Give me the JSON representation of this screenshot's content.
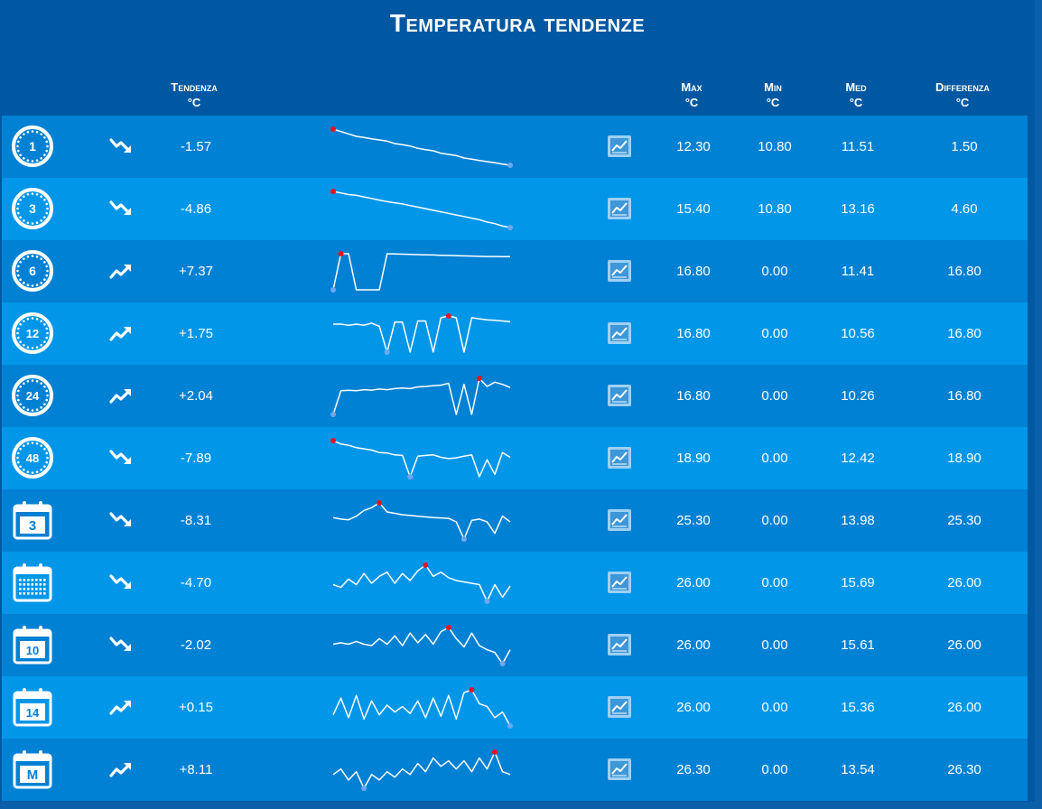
{
  "title": "Temperatura tendenze",
  "headers": {
    "trend": [
      "Tendenza",
      "°C"
    ],
    "max": [
      "Max",
      "°C"
    ],
    "min": [
      "Min",
      "°C"
    ],
    "avg": [
      "Med",
      "°C"
    ],
    "diff": [
      "Differenza",
      "°C"
    ]
  },
  "colors": {
    "background": "#0158a2",
    "row_dark": "#0181d3",
    "row_light": "#0196e8",
    "max_marker": "#e8141c",
    "min_marker": "#6fa7f0"
  },
  "rows": [
    {
      "period_icon": "clock-1-icon",
      "period_label": "1",
      "icon_type": "clock",
      "direction": "down",
      "trend": "-1.57",
      "max": "12.30",
      "min": "10.80",
      "avg": "11.51",
      "diff": "1.50",
      "spark": [
        12.3,
        12.2,
        12.1,
        12.0,
        11.95,
        11.9,
        11.85,
        11.8,
        11.7,
        11.65,
        11.6,
        11.5,
        11.45,
        11.4,
        11.3,
        11.25,
        11.2,
        11.1,
        11.05,
        11.0,
        10.95,
        10.9,
        10.85,
        10.8
      ],
      "spark_max_index": 0,
      "spark_min_index": 23
    },
    {
      "period_icon": "clock-3-icon",
      "period_label": "3",
      "icon_type": "clock",
      "direction": "down",
      "trend": "-4.86",
      "max": "15.40",
      "min": "10.80",
      "avg": "13.16",
      "diff": "4.60",
      "spark": [
        15.4,
        15.2,
        15.0,
        14.9,
        14.7,
        14.5,
        14.3,
        14.1,
        13.95,
        13.8,
        13.6,
        13.4,
        13.2,
        13.0,
        12.8,
        12.6,
        12.4,
        12.2,
        12.0,
        11.8,
        11.5,
        11.3,
        11.0,
        10.8
      ],
      "spark_max_index": 0,
      "spark_min_index": 23
    },
    {
      "period_icon": "clock-6-icon",
      "period_label": "6",
      "icon_type": "clock",
      "direction": "up",
      "trend": "+7.37",
      "max": "16.80",
      "min": "0.00",
      "avg": "11.41",
      "diff": "16.80",
      "spark": [
        0,
        16.8,
        16.8,
        0,
        0,
        0,
        0,
        16.8,
        16.7,
        16.6,
        16.5,
        16.4,
        16.3,
        16.2,
        16.1,
        16.0,
        15.9,
        15.8,
        15.7,
        15.6,
        15.5,
        15.5,
        15.4,
        15.4
      ],
      "spark_max_index": 1,
      "spark_min_index": 0
    },
    {
      "period_icon": "clock-12-icon",
      "period_label": "12",
      "icon_type": "clock",
      "direction": "up",
      "trend": "+1.75",
      "max": "16.80",
      "min": "0.00",
      "avg": "10.56",
      "diff": "16.80",
      "spark": [
        13.0,
        13.0,
        12.5,
        13.0,
        12.5,
        13.5,
        12.0,
        0,
        14.0,
        14.0,
        0,
        14.5,
        14.5,
        0,
        16.0,
        16.8,
        16.0,
        0,
        16.0,
        15.5,
        15.0,
        14.8,
        14.5,
        14.2
      ],
      "spark_max_index": 15,
      "spark_min_index": 7
    },
    {
      "period_icon": "clock-24-icon",
      "period_label": "24",
      "icon_type": "clock",
      "direction": "up",
      "trend": "+2.04",
      "max": "16.80",
      "min": "0.00",
      "avg": "10.26",
      "diff": "16.80",
      "spark": [
        0,
        11.0,
        11.2,
        11.0,
        11.5,
        11.3,
        11.8,
        11.5,
        12.0,
        12.3,
        12.0,
        12.8,
        13.0,
        13.4,
        13.6,
        14.5,
        0,
        14.0,
        0,
        16.8,
        13.0,
        15.0,
        14.0,
        12.5
      ],
      "spark_max_index": 19,
      "spark_min_index": 0
    },
    {
      "period_icon": "clock-48-icon",
      "period_label": "48",
      "icon_type": "clock",
      "direction": "down",
      "trend": "-7.89",
      "max": "18.90",
      "min": "0.00",
      "avg": "12.42",
      "diff": "18.90",
      "spark": [
        18.9,
        17.5,
        17.0,
        16.0,
        15.5,
        15.0,
        14.0,
        13.8,
        13.0,
        12.8,
        4.0,
        12.5,
        12.8,
        13.0,
        12.0,
        11.5,
        11.8,
        12.5,
        13.0,
        4.0,
        11.0,
        5.0,
        14.0,
        12.0
      ],
      "spark_max_index": 0,
      "spark_min_index": 10
    },
    {
      "period_icon": "calendar-3-icon",
      "period_label": "3",
      "icon_type": "calendar",
      "direction": "down",
      "trend": "-8.31",
      "max": "25.30",
      "min": "0.00",
      "avg": "13.98",
      "diff": "25.30",
      "spark": [
        15.0,
        14.0,
        13.5,
        16.0,
        20.0,
        22.0,
        25.3,
        19.0,
        18.0,
        17.0,
        16.5,
        16.0,
        15.5,
        15.0,
        14.8,
        14.5,
        12.0,
        0.0,
        13.0,
        14.0,
        12.0,
        4.0,
        16.0,
        12.0
      ],
      "spark_max_index": 6,
      "spark_min_index": 17
    },
    {
      "period_icon": "calendar-month-grid-icon",
      "period_label": "",
      "icon_type": "calendar-grid",
      "direction": "down",
      "trend": "-4.70",
      "max": "26.00",
      "min": "0.00",
      "avg": "15.69",
      "diff": "26.00",
      "spark": [
        12.0,
        10.0,
        16.0,
        12.0,
        20.0,
        13.0,
        18.0,
        21.0,
        13.0,
        20.0,
        15.0,
        22.0,
        26.0,
        18.0,
        21.0,
        17.0,
        15.0,
        14.0,
        13.0,
        12.0,
        0.0,
        12.0,
        3.0,
        11.0
      ],
      "spark_max_index": 12,
      "spark_min_index": 20
    },
    {
      "period_icon": "calendar-10-icon",
      "period_label": "10",
      "icon_type": "calendar",
      "direction": "down",
      "trend": "-2.02",
      "max": "26.00",
      "min": "0.00",
      "avg": "15.61",
      "diff": "26.00",
      "spark": [
        14.0,
        15.0,
        14.0,
        16.0,
        14.0,
        13.0,
        18.0,
        14.0,
        20.0,
        13.0,
        22.0,
        15.0,
        21.0,
        14.0,
        23.0,
        26.0,
        18.0,
        12.0,
        22.0,
        13.0,
        10.0,
        8.0,
        0.0,
        10.0
      ],
      "spark_max_index": 15,
      "spark_min_index": 22
    },
    {
      "period_icon": "calendar-14-icon",
      "period_label": "14",
      "icon_type": "calendar",
      "direction": "up",
      "trend": "+0.15",
      "max": "26.00",
      "min": "0.00",
      "avg": "15.36",
      "diff": "26.00",
      "spark": [
        8.0,
        20.0,
        6.0,
        22.0,
        5.0,
        18.0,
        8.0,
        15.0,
        10.0,
        14.0,
        9.0,
        18.0,
        6.0,
        20.0,
        7.0,
        22.0,
        5.0,
        24.0,
        26.0,
        16.0,
        14.0,
        6.0,
        10.0,
        0.0
      ],
      "spark_max_index": 18,
      "spark_min_index": 23
    },
    {
      "period_icon": "calendar-m-icon",
      "period_label": "M",
      "icon_type": "calendar",
      "direction": "up",
      "trend": "+8.11",
      "max": "26.30",
      "min": "0.00",
      "avg": "13.54",
      "diff": "26.30",
      "spark": [
        10.0,
        14.0,
        6.0,
        12.0,
        0.0,
        10.0,
        6.0,
        12.0,
        8.0,
        14.0,
        10.0,
        18.0,
        12.0,
        22.0,
        16.0,
        20.0,
        14.0,
        20.0,
        12.0,
        22.0,
        14.0,
        26.3,
        12.0,
        10.0
      ],
      "spark_max_index": 21,
      "spark_min_index": 4
    }
  ]
}
